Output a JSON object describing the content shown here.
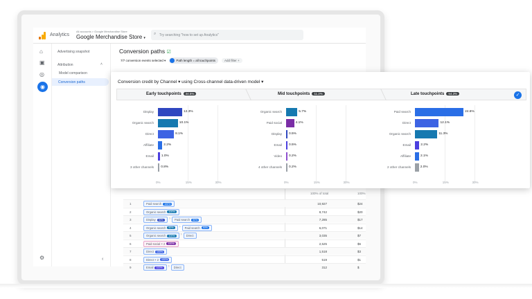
{
  "header": {
    "app_name": "Analytics",
    "breadcrumb": "All accounts > Google Merchandise Store",
    "property": "Google Merchandise Store",
    "search_placeholder": "Try searching \"how to set up Analytics\""
  },
  "rail_icons": [
    "home-icon",
    "reports-icon",
    "explore-icon",
    "advertising-icon",
    "settings-icon"
  ],
  "nav": {
    "advertising_snapshot": "Advertising snapshot",
    "attribution": "Attribution",
    "model_comparison": "Model comparison",
    "conversion_paths": "Conversion paths",
    "collapse": "‹"
  },
  "page": {
    "title": "Conversion paths",
    "events": "7/7 conversion events selected",
    "chip": "Path length = all touchpoints",
    "add_filter": "Add filter"
  },
  "card": {
    "title": "Conversion credit by Channel",
    "model": "using Cross-channel data-driven model",
    "ticks": [
      "0%",
      "15%",
      "30%"
    ],
    "panels": [
      {
        "label": "Early touchpoints",
        "pct": "34.5%",
        "rows": [
          {
            "name": "Display",
            "value": 12.3,
            "color": "#2f47c0"
          },
          {
            "name": "Organic search",
            "value": 10.1,
            "color": "#1679b0"
          },
          {
            "name": "Direct",
            "value": 8.1,
            "color": "#3d63e3"
          },
          {
            "name": "Affiliate",
            "value": 2.2,
            "color": "#2a6ee6"
          },
          {
            "name": "Email",
            "value": 1.0,
            "color": "#4b3fdf"
          },
          {
            "name": "3 other channels",
            "value": 0.8,
            "color": "#9aa0a6"
          }
        ]
      },
      {
        "label": "Mid touchpoints",
        "pct": "11.2%",
        "rows": [
          {
            "name": "Organic search",
            "value": 5.7,
            "color": "#1679b0"
          },
          {
            "name": "Paid social",
            "value": 4.1,
            "color": "#7b2ea6"
          },
          {
            "name": "Display",
            "value": 0.5,
            "color": "#2f47c0"
          },
          {
            "name": "Email",
            "value": 0.5,
            "color": "#4b3fdf"
          },
          {
            "name": "Video",
            "value": 0.2,
            "color": "#8e4fcf"
          },
          {
            "name": "4 other channels",
            "value": 0.2,
            "color": "#9aa0a6"
          }
        ]
      },
      {
        "label": "Late touchpoints",
        "pct": "54.3%",
        "rows": [
          {
            "name": "Paid search",
            "value": 24.6,
            "color": "#2a6ee6"
          },
          {
            "name": "Direct",
            "value": 12.1,
            "color": "#3d63e3"
          },
          {
            "name": "Organic search",
            "value": 11.3,
            "color": "#1679b0"
          },
          {
            "name": "Email",
            "value": 2.2,
            "color": "#4b3fdf"
          },
          {
            "name": "Affiliate",
            "value": 2.1,
            "color": "#2a6ee6"
          },
          {
            "name": "2 other channels",
            "value": 2.0,
            "color": "#9aa0a6"
          }
        ]
      }
    ]
  },
  "table": {
    "col1": "100% of total",
    "col2": "100%",
    "rows": [
      {
        "n": "1",
        "path": [
          {
            "t": "Paid search",
            "b": "100%",
            "c": "#1a73e8"
          }
        ],
        "v": "10,927",
        "v2": "$24"
      },
      {
        "n": "2",
        "path": [
          {
            "t": "Organic search",
            "b": "100%",
            "c": "#1679b0"
          }
        ],
        "v": "8,742",
        "v2": "$20"
      },
      {
        "n": "3",
        "path": [
          {
            "t": "Display",
            "b": "50%",
            "c": "#2f47c0"
          },
          {
            "t": "Paid search",
            "b": "50%",
            "c": "#1a73e8"
          }
        ],
        "v": "7,285",
        "v2": "$17"
      },
      {
        "n": "4",
        "path": [
          {
            "t": "Organic search",
            "b": "50%",
            "c": "#1679b0"
          },
          {
            "t": "Paid search",
            "b": "50%",
            "c": "#1a73e8"
          }
        ],
        "v": "6,071",
        "v2": "$14"
      },
      {
        "n": "5",
        "path": [
          {
            "t": "Organic search",
            "b": "100%",
            "c": "#1679b0"
          },
          {
            "t": "Direct",
            "b": "",
            "c": ""
          }
        ],
        "v": "3,035",
        "v2": "$7"
      },
      {
        "n": "6",
        "path": [
          {
            "t": "Paid social × 2",
            "b": "100%",
            "c": "#7b2ea6",
            "pink": true
          }
        ],
        "v": "2,525",
        "v2": "$6"
      },
      {
        "n": "7",
        "path": [
          {
            "t": "Direct",
            "b": "100%",
            "c": "#3d63e3"
          }
        ],
        "v": "1,518",
        "v2": "$3"
      },
      {
        "n": "8",
        "path": [
          {
            "t": "Direct × 2",
            "b": "100%",
            "c": "#3d63e3"
          }
        ],
        "v": "519",
        "v2": "$1"
      },
      {
        "n": "9",
        "path": [
          {
            "t": "Email",
            "b": "100%",
            "c": "#4b3fdf"
          },
          {
            "t": "Direct",
            "b": "",
            "c": ""
          }
        ],
        "v": "312",
        "v2": "$"
      }
    ]
  }
}
